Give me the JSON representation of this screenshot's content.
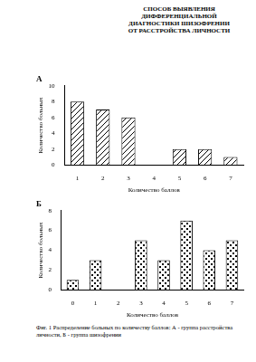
{
  "header": {
    "lines": [
      "СПОСОБ ВЫЯВЛЕНИЯ",
      "ДИФФЕРЕНЦИАЛЬНОЙ",
      "ДИАГНОСТИКИ ШИЗОФРЕНИИ",
      "ОТ РАССТРОЙСТВА ЛИЧНОСТИ"
    ]
  },
  "chart_data": [
    {
      "type": "bar",
      "title": "А",
      "x_label": "Количество баллов",
      "y_label": "Количество больных",
      "categories": [
        "1",
        "2",
        "3",
        "4",
        "5",
        "6",
        "7"
      ],
      "values": [
        8,
        7,
        6,
        0,
        2,
        2,
        1
      ],
      "color": "#000000",
      "ylim": [
        0,
        10
      ],
      "yticks": [
        0,
        2,
        4,
        6,
        8,
        10
      ],
      "grid": false
    },
    {
      "type": "bar",
      "title": "Б",
      "x_label": "Количество баллов",
      "y_label": "Количество больных",
      "categories": [
        "0",
        "1",
        "2",
        "3",
        "4",
        "5",
        "6",
        "7"
      ],
      "values": [
        1,
        3,
        0,
        5,
        3,
        7,
        4,
        5
      ],
      "color": "#000000",
      "ylim": [
        0,
        8
      ],
      "yticks": [
        0,
        2,
        4,
        6,
        8
      ],
      "grid": false
    }
  ],
  "caption": "Фиг. 1 Распределение больных по количеству баллов: А - группа расстройства личности, Б - группа шизофрении"
}
